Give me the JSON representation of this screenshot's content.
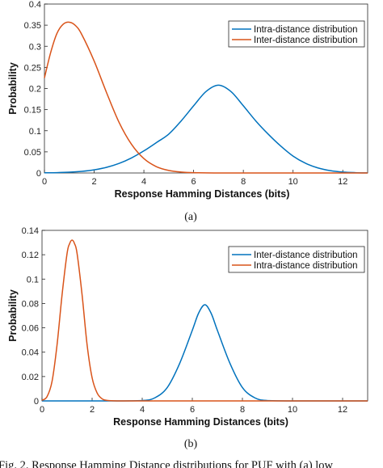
{
  "chart_data": [
    {
      "type": "line",
      "panel_label": "(a)",
      "xlabel": "Response Hamming Distances (bits)",
      "ylabel": "Probability",
      "xlim": [
        0,
        13
      ],
      "ylim": [
        0,
        0.4
      ],
      "xticks": [
        0,
        2,
        4,
        6,
        8,
        10,
        12
      ],
      "yticks": [
        0,
        0.05,
        0.1,
        0.15,
        0.2,
        0.25,
        0.3,
        0.35,
        0.4
      ],
      "ytick_labels": [
        "0",
        "0.05",
        "0.1",
        "0.15",
        "0.2",
        "0.25",
        "0.3",
        "0.35",
        "0.4"
      ],
      "legend_position": "top-right",
      "grid": false,
      "series": [
        {
          "name": "Intra-distance distribution",
          "color": "#0072BD",
          "x": [
            0,
            0.5,
            1,
            1.5,
            2,
            2.5,
            3,
            3.5,
            4,
            4.5,
            5,
            5.5,
            6,
            6.5,
            7,
            7.5,
            8,
            8.5,
            9,
            9.5,
            10,
            10.5,
            11,
            11.5,
            12,
            12.5,
            13
          ],
          "y": [
            0.0004,
            0.0008,
            0.0018,
            0.0038,
            0.0074,
            0.0134,
            0.0226,
            0.0356,
            0.0523,
            0.0718,
            0.092,
            0.1233,
            0.159,
            0.193,
            0.208,
            0.193,
            0.159,
            0.1233,
            0.092,
            0.064,
            0.04,
            0.023,
            0.012,
            0.0055,
            0.0022,
            0.0008,
            0.0002
          ]
        },
        {
          "name": "Inter-distance distribution",
          "color": "#D95319",
          "x": [
            0,
            0.25,
            0.5,
            0.75,
            1,
            1.25,
            1.5,
            2,
            2.5,
            3,
            3.5,
            4,
            4.5,
            5,
            5.5,
            6,
            7,
            8,
            9,
            10,
            11,
            12,
            13
          ],
          "y": [
            0.225,
            0.285,
            0.33,
            0.352,
            0.357,
            0.349,
            0.328,
            0.265,
            0.19,
            0.12,
            0.068,
            0.034,
            0.015,
            0.006,
            0.0022,
            0.0007,
            0.0001,
            0,
            0,
            0,
            0,
            0,
            0
          ]
        }
      ]
    },
    {
      "type": "line",
      "panel_label": "(b)",
      "xlabel": "Response Hamming Distances (bits)",
      "ylabel": "Probability",
      "xlim": [
        0,
        13
      ],
      "ylim": [
        0,
        0.14
      ],
      "xticks": [
        0,
        2,
        4,
        6,
        8,
        10,
        12
      ],
      "yticks": [
        0,
        0.02,
        0.04,
        0.06,
        0.08,
        0.1,
        0.12,
        0.14
      ],
      "ytick_labels": [
        "0",
        "0.02",
        "0.04",
        "0.06",
        "0.08",
        "0.1",
        "0.12",
        "0.14"
      ],
      "legend_position": "top-right",
      "grid": false,
      "series": [
        {
          "name": "Inter-distance distribution",
          "color": "#0072BD",
          "x": [
            0,
            1,
            2,
            3,
            4,
            4.5,
            5,
            5.5,
            6,
            6.25,
            6.5,
            6.75,
            7,
            7.5,
            8,
            8.5,
            9,
            10,
            11,
            12,
            13
          ],
          "y": [
            0,
            0,
            0,
            0,
            0.0003,
            0.0025,
            0.011,
            0.031,
            0.058,
            0.072,
            0.079,
            0.072,
            0.058,
            0.031,
            0.011,
            0.0025,
            0.0003,
            0,
            0,
            0,
            0
          ]
        },
        {
          "name": "Intra-distance distribution",
          "color": "#D95319",
          "x": [
            0,
            0.2,
            0.4,
            0.6,
            0.8,
            1.0,
            1.1,
            1.2,
            1.3,
            1.4,
            1.6,
            1.8,
            2.0,
            2.2,
            2.4,
            2.6,
            3,
            4,
            6,
            8,
            10,
            12,
            13
          ],
          "y": [
            0.0005,
            0.0035,
            0.016,
            0.046,
            0.087,
            0.121,
            0.129,
            0.132,
            0.129,
            0.121,
            0.087,
            0.046,
            0.019,
            0.0065,
            0.0017,
            0.0004,
            0,
            0,
            0,
            0,
            0,
            0,
            0
          ]
        }
      ]
    }
  ],
  "figure_caption": "Fig. 2.  Response Hamming Distance distributions for PUF with (a) low"
}
